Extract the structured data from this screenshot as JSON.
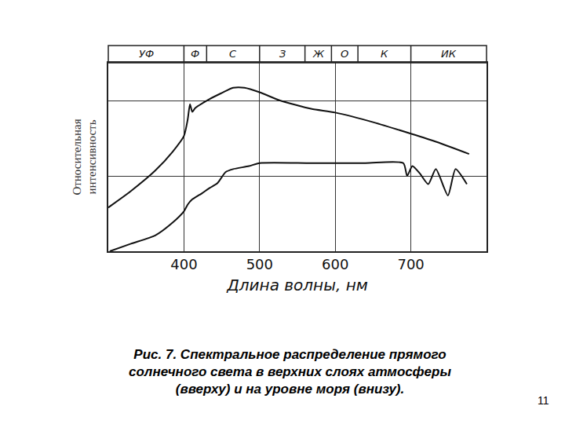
{
  "chart_data": {
    "type": "line",
    "x_label": "Длина волны, нм",
    "y_label": [
      "Относительная",
      "интенсивность"
    ],
    "caption": [
      "Рис. 7. Спектральное распределение прямого",
      "солнечного света в верхних слоях атмосферы",
      "(вверху) и на уровне моря (внизу)."
    ],
    "page_number": 11,
    "regions": [
      {
        "label": "УФ",
        "from": 300,
        "to": 400
      },
      {
        "label": "Ф",
        "from": 400,
        "to": 430
      },
      {
        "label": "С",
        "from": 430,
        "to": 500
      },
      {
        "label": "З",
        "from": 500,
        "to": 560
      },
      {
        "label": "Ж",
        "from": 560,
        "to": 595
      },
      {
        "label": "О",
        "from": 595,
        "to": 630
      },
      {
        "label": "К",
        "from": 630,
        "to": 700
      },
      {
        "label": "ИК",
        "from": 700,
        "to": 800
      }
    ],
    "series": [
      {
        "color": "#111111",
        "x": [
          300,
          330,
          362,
          385,
          400,
          405,
          408,
          411,
          415,
          434,
          450,
          465,
          480,
          500,
          527,
          568,
          600,
          651,
          700,
          734,
          777
        ],
        "values": [
          0.58,
          0.8,
          1.07,
          1.32,
          1.53,
          1.75,
          1.95,
          1.85,
          1.9,
          2.02,
          2.1,
          2.17,
          2.17,
          2.11,
          2.0,
          1.89,
          1.84,
          1.71,
          1.56,
          1.45,
          1.29
        ]
      },
      {
        "color": "#111111",
        "x": [
          302,
          330,
          362,
          385,
          400,
          405,
          410,
          424,
          434,
          444,
          455,
          465,
          486,
          500,
          568,
          640,
          690,
          695,
          702,
          712,
          723,
          733,
          749,
          759,
          774
        ],
        "values": [
          0,
          0.1,
          0.21,
          0.38,
          0.53,
          0.62,
          0.68,
          0.77,
          0.84,
          0.9,
          1.05,
          1.09,
          1.13,
          1.17,
          1.17,
          1.17,
          1.17,
          1.0,
          1.13,
          1.03,
          0.89,
          1.09,
          0.74,
          1.09,
          0.89
        ]
      }
    ],
    "xlim": [
      300,
      800
    ],
    "xticks": [
      400,
      500,
      600,
      700
    ],
    "ylim": [
      0,
      2.5
    ],
    "yticks": [
      0,
      1,
      2
    ],
    "grid": true,
    "tick_labels": "x"
  }
}
